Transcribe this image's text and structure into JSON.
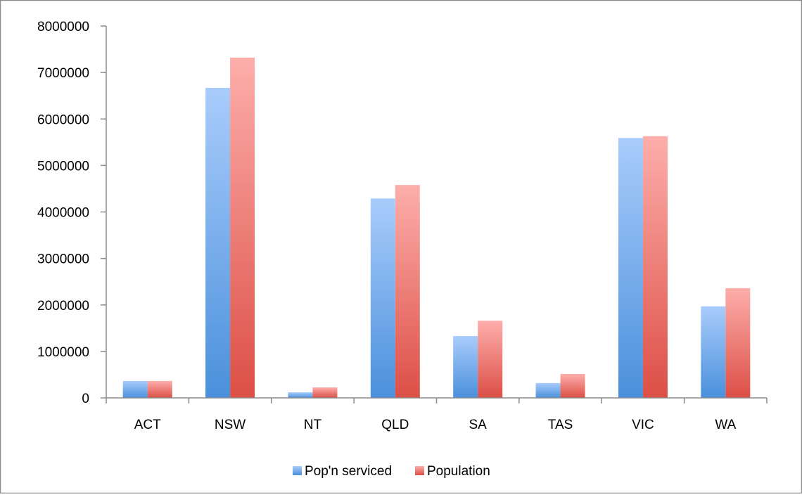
{
  "chart_data": {
    "type": "bar",
    "categories": [
      "ACT",
      "NSW",
      "NT",
      "QLD",
      "SA",
      "TAS",
      "VIC",
      "WA"
    ],
    "series": [
      {
        "name": "Pop'n serviced",
        "values": [
          365000,
          6670000,
          120000,
          4290000,
          1330000,
          320000,
          5590000,
          1970000
        ],
        "color_top": "#a9ccfb",
        "color_bottom": "#4a90dc"
      },
      {
        "name": "Population",
        "values": [
          365000,
          7320000,
          225000,
          4580000,
          1660000,
          515000,
          5630000,
          2360000
        ],
        "color_top": "#fdaeab",
        "color_bottom": "#dc4f46"
      }
    ],
    "title": "",
    "xlabel": "",
    "ylabel": "",
    "ylim": [
      0,
      8000000
    ],
    "yticks": [
      "0",
      "1000000",
      "2000000",
      "3000000",
      "4000000",
      "5000000",
      "6000000",
      "7000000",
      "8000000"
    ],
    "grid": false,
    "legend_position": "bottom",
    "axis_color": "#8c8c8c",
    "frame_color": "#8c8c8c"
  }
}
